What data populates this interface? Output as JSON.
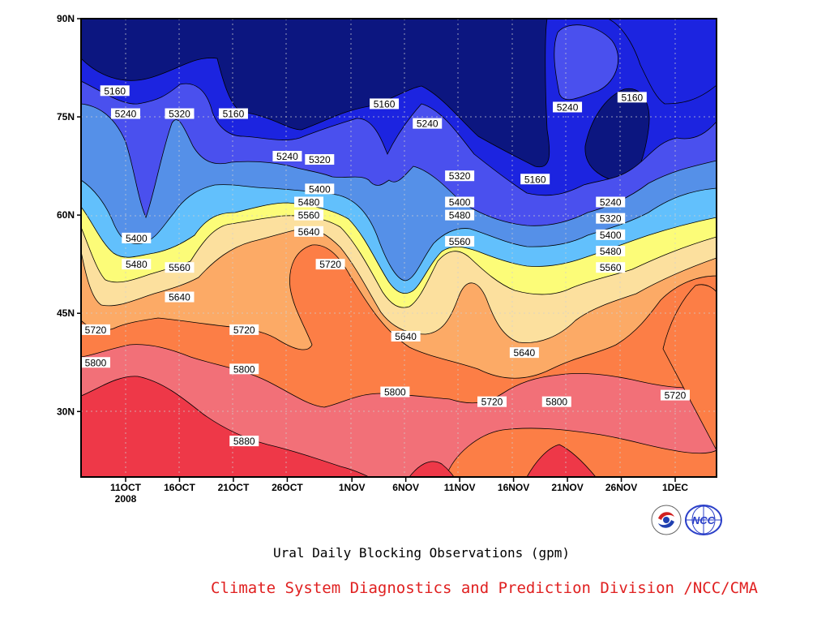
{
  "chart_data": {
    "type": "contour",
    "title": "Ural Daily Blocking Observations (gpm)",
    "x_ticks": [
      "11OCT",
      "16OCT",
      "21OCT",
      "26OCT",
      "1NOV",
      "6NOV",
      "11NOV",
      "16NOV",
      "21NOV",
      "26NOV",
      "1DEC"
    ],
    "x_year": "2008",
    "y_ticks": [
      "90N",
      "75N",
      "60N",
      "45N",
      "30N"
    ],
    "ylim": [
      20,
      90
    ],
    "levels": [
      5160,
      5240,
      5320,
      5400,
      5480,
      5560,
      5640,
      5720,
      5800,
      5880
    ],
    "bands": [
      {
        "level": "<5160",
        "color": "#0c1680"
      },
      {
        "level": "5160-5240",
        "color": "#1c24e0"
      },
      {
        "level": "5240-5320",
        "color": "#4a50ee"
      },
      {
        "level": "5320-5400",
        "color": "#5590e8"
      },
      {
        "level": "5400-5480",
        "color": "#62c0fc"
      },
      {
        "level": "5480-5560",
        "color": "#fcfc78"
      },
      {
        "level": "5560-5640",
        "color": "#fce09e"
      },
      {
        "level": "5640-5720",
        "color": "#fcaa66"
      },
      {
        "level": "5720-5800",
        "color": "#fc7e46"
      },
      {
        "level": "5800-5880",
        "color": "#f27078"
      },
      {
        "level": ">5880",
        "color": "#ee3848"
      }
    ],
    "labels": [
      {
        "text": "5160",
        "date": "10OCT",
        "lat": 79
      },
      {
        "text": "5240",
        "date": "11OCT",
        "lat": 75.5
      },
      {
        "text": "5320",
        "date": "16OCT",
        "lat": 75.5
      },
      {
        "text": "5160",
        "date": "21OCT",
        "lat": 75.5
      },
      {
        "text": "5240",
        "date": "26OCT",
        "lat": 69
      },
      {
        "text": "5320",
        "date": "29OCT",
        "lat": 68.5
      },
      {
        "text": "5400",
        "date": "29OCT",
        "lat": 64
      },
      {
        "text": "5480",
        "date": "28OCT",
        "lat": 62
      },
      {
        "text": "5560",
        "date": "28OCT",
        "lat": 60
      },
      {
        "text": "5640",
        "date": "28OCT",
        "lat": 57.5
      },
      {
        "text": "5720",
        "date": "30OCT",
        "lat": 52.5
      },
      {
        "text": "5160",
        "date": "4NOV",
        "lat": 77
      },
      {
        "text": "5240",
        "date": "8NOV",
        "lat": 74
      },
      {
        "text": "5320",
        "date": "11NOV",
        "lat": 66
      },
      {
        "text": "5400",
        "date": "11NOV",
        "lat": 62
      },
      {
        "text": "5480",
        "date": "11NOV",
        "lat": 60
      },
      {
        "text": "5560",
        "date": "11NOV",
        "lat": 56
      },
      {
        "text": "5640",
        "date": "6NOV",
        "lat": 41.5
      },
      {
        "text": "5800",
        "date": "5NOV",
        "lat": 33
      },
      {
        "text": "5160",
        "date": "18NOV",
        "lat": 65.5
      },
      {
        "text": "5640",
        "date": "17NOV",
        "lat": 39
      },
      {
        "text": "5720",
        "date": "14NOV",
        "lat": 31.5
      },
      {
        "text": "5800",
        "date": "20NOV",
        "lat": 31.5
      },
      {
        "text": "5240",
        "date": "21NOV",
        "lat": 76.5
      },
      {
        "text": "5160",
        "date": "27NOV",
        "lat": 78
      },
      {
        "text": "5240",
        "date": "25NOV",
        "lat": 62
      },
      {
        "text": "5320",
        "date": "25NOV",
        "lat": 59.5
      },
      {
        "text": "5400",
        "date": "25NOV",
        "lat": 57
      },
      {
        "text": "5480",
        "date": "25NOV",
        "lat": 54.5
      },
      {
        "text": "5560",
        "date": "25NOV",
        "lat": 52
      },
      {
        "text": "5720",
        "date": "1DEC",
        "lat": 32.5
      },
      {
        "text": "5400",
        "date": "12OCT",
        "lat": 56.5
      },
      {
        "text": "5480",
        "date": "12OCT",
        "lat": 52.5
      },
      {
        "text": "5560",
        "date": "16OCT",
        "lat": 52
      },
      {
        "text": "5640",
        "date": "16OCT",
        "lat": 47.5
      },
      {
        "text": "5720",
        "date": "8OCT",
        "lat": 42.5
      },
      {
        "text": "5800",
        "date": "7OCT",
        "lat": 37.5
      },
      {
        "text": "5720",
        "date": "22OCT",
        "lat": 42.5
      },
      {
        "text": "5800",
        "date": "22OCT",
        "lat": 36.5
      },
      {
        "text": "5880",
        "date": "22OCT",
        "lat": 25.5
      }
    ],
    "grid": true
  },
  "caption": "Ural Daily Blocking Observations (gpm)",
  "credit": "Climate System Diagnostics and Prediction Division /NCC/CMA",
  "logos": [
    "bcc-logo-icon",
    "ncc-logo-icon"
  ]
}
